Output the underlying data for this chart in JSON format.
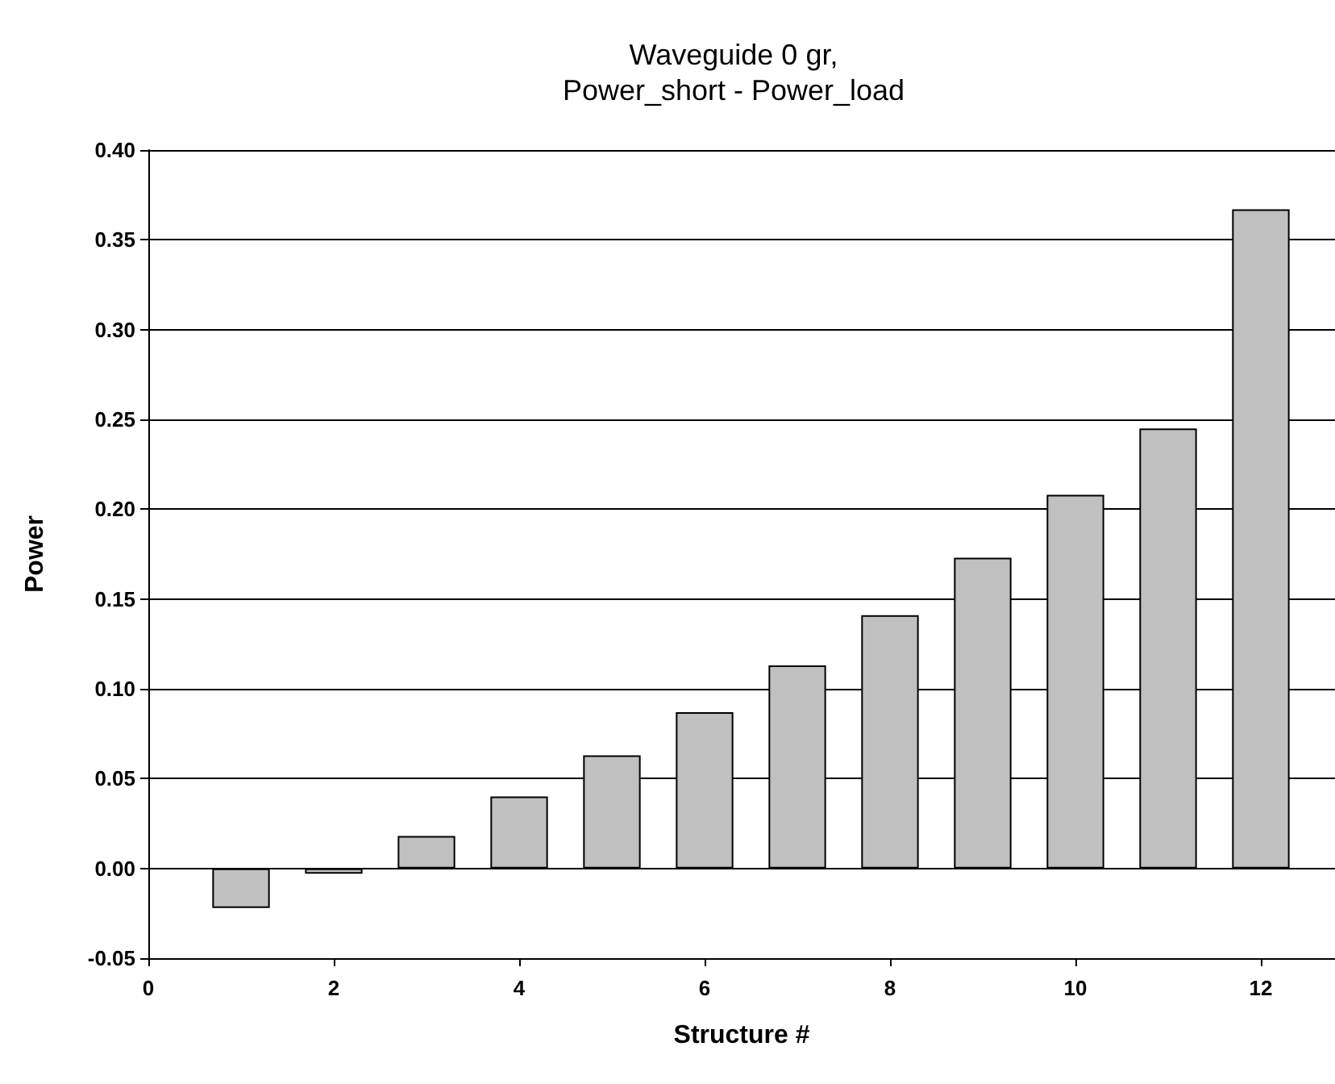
{
  "chart_data": {
    "type": "bar",
    "title": "Waveguide 0 gr,\nPower_short - Power_load",
    "xlabel": "Structure #",
    "ylabel": "Power",
    "x": [
      1,
      2,
      3,
      4,
      5,
      6,
      7,
      8,
      9,
      10,
      11,
      12
    ],
    "values": [
      -0.022,
      -0.003,
      0.018,
      0.04,
      0.063,
      0.087,
      0.113,
      0.141,
      0.173,
      0.208,
      0.245,
      0.367
    ],
    "color": "#c0c0c0",
    "xlim": [
      0,
      12.8
    ],
    "xticks": [
      0,
      2,
      4,
      6,
      8,
      10,
      12
    ],
    "ylim": [
      -0.05,
      0.4
    ],
    "yticks": [
      {
        "value": -0.05,
        "label": "-0.05"
      },
      {
        "value": 0,
        "label": "0.00"
      },
      {
        "value": 0.05,
        "label": "0.05"
      },
      {
        "value": 0.1,
        "label": "0.10"
      },
      {
        "value": 0.15,
        "label": "0.15"
      },
      {
        "value": 0.2,
        "label": "0.20"
      },
      {
        "value": 0.25,
        "label": "0.25"
      },
      {
        "value": 0.3,
        "label": "0.30"
      },
      {
        "value": 0.35,
        "label": "0.35"
      },
      {
        "value": 0.4,
        "label": "0.40"
      }
    ],
    "grid": "y"
  }
}
